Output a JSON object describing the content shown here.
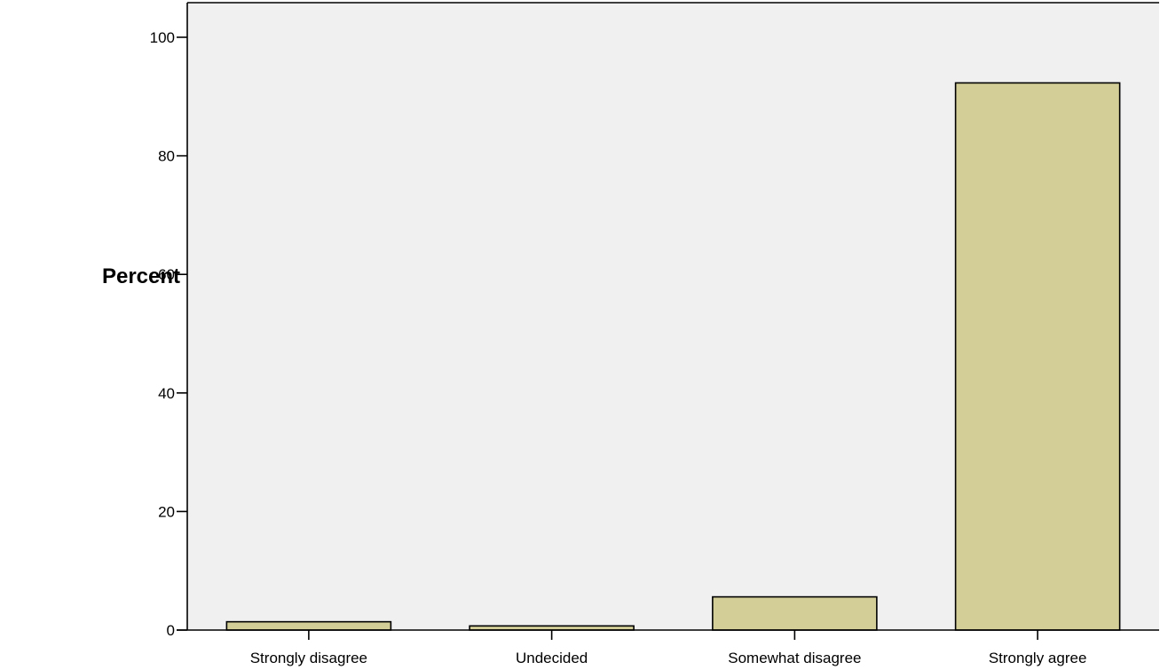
{
  "chart_data": {
    "type": "bar",
    "categories": [
      "Strongly disagree",
      "Undecided",
      "Somewhat disagree",
      "Strongly agree"
    ],
    "values": [
      1.4,
      0.7,
      5.6,
      92.3
    ],
    "ylabel": "Percent",
    "xlabel": "",
    "ylim": [
      0,
      105
    ],
    "yticks": [
      0,
      20,
      40,
      60,
      80,
      100
    ],
    "grid": false,
    "colors": {
      "bar_fill": "#d3ce97",
      "bar_stroke": "#000000",
      "plot_background": "#f0f0f0",
      "axis": "#000000"
    }
  }
}
